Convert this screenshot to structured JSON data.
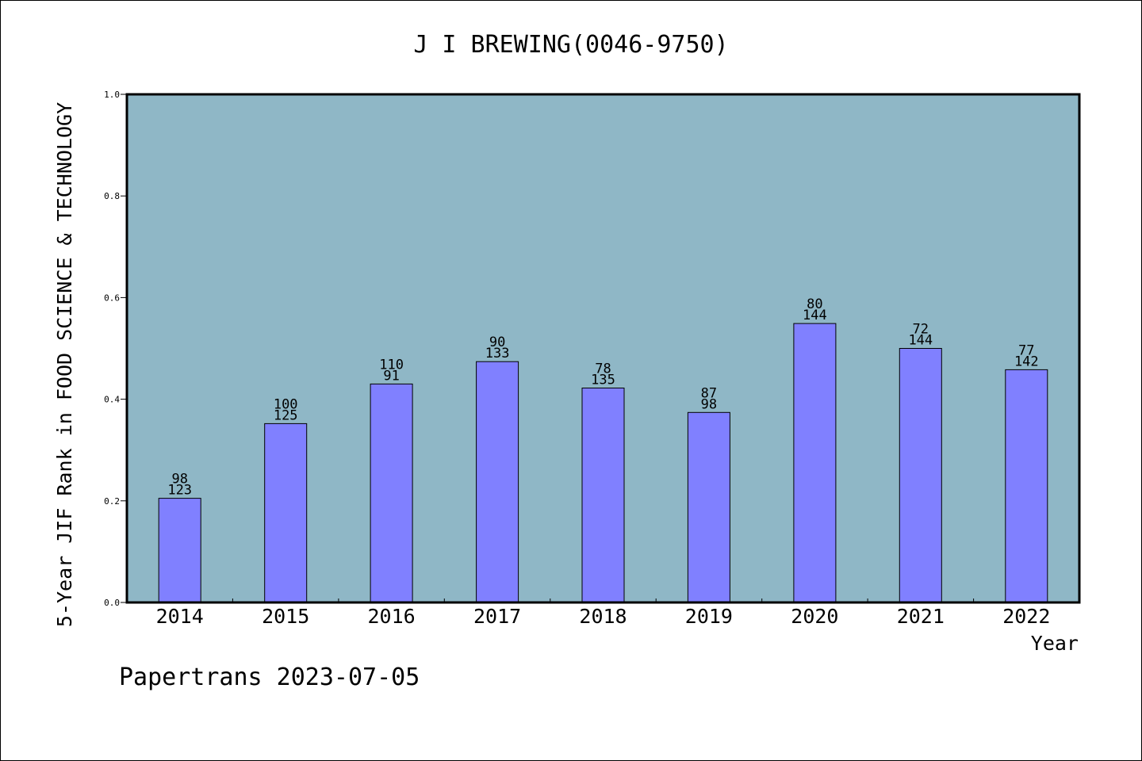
{
  "chart_data": {
    "type": "bar",
    "title": "J I BREWING(0046-9750)",
    "xlabel": "Year",
    "ylabel": "5-Year JIF Rank in FOOD SCIENCE & TECHNOLOGY",
    "categories": [
      "2014",
      "2015",
      "2016",
      "2017",
      "2018",
      "2019",
      "2020",
      "2021",
      "2022"
    ],
    "values": [
      0.205,
      0.352,
      0.43,
      0.474,
      0.422,
      0.374,
      0.549,
      0.5,
      0.458
    ],
    "labels_rank": [
      "98",
      "100",
      "110",
      "90",
      "78",
      "87",
      "80",
      "72",
      "77"
    ],
    "labels_total": [
      "123",
      "125",
      "91",
      "133",
      "135",
      "98",
      "144",
      "144",
      "142"
    ],
    "ylim": [
      0,
      1.0
    ],
    "yticks": [
      "0.0",
      "0.2",
      "0.4",
      "0.6",
      "0.8",
      "1.0"
    ],
    "grid": false,
    "colors": {
      "plot_background": "#8fb7c6",
      "bar_fill": "#8080ff",
      "bar_stroke": "#000000"
    }
  },
  "footer": {
    "credit": "Papertrans 2023-07-05"
  }
}
